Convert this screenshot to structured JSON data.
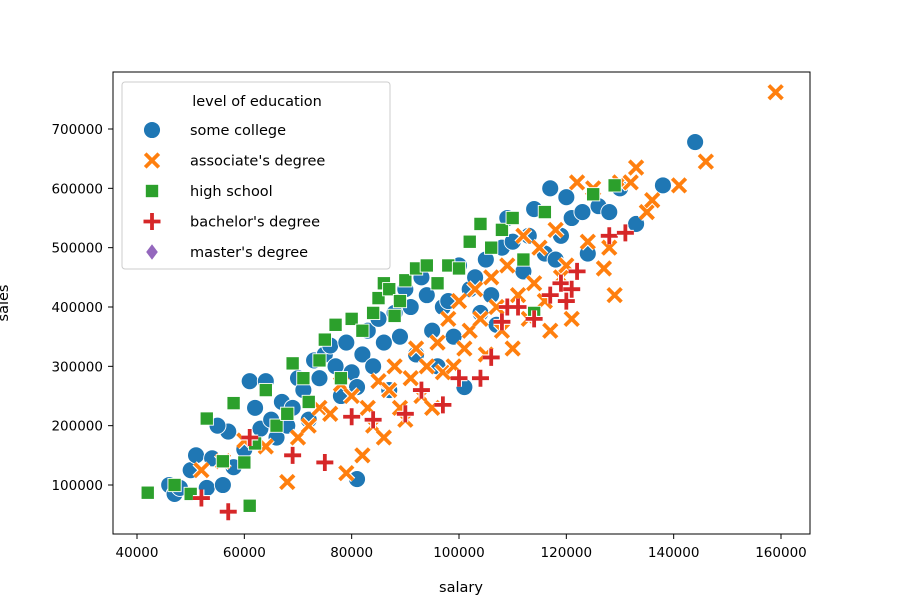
{
  "chart_data": {
    "type": "scatter",
    "xlabel": "salary",
    "ylabel": "sales",
    "xlim": [
      40000,
      160000
    ],
    "ylim": [
      0,
      800000
    ],
    "xticks": [
      "40000",
      "60000",
      "80000",
      "100000",
      "120000",
      "140000",
      "160000"
    ],
    "yticks": [
      "100000",
      "200000",
      "300000",
      "400000",
      "500000",
      "600000",
      "700000"
    ],
    "grid": false,
    "legend": {
      "title": "level of education",
      "position": "top-left",
      "entries": [
        "some college",
        "associate's degree",
        "high school",
        "bachelor's degree",
        "master's degree"
      ]
    },
    "series": [
      {
        "name": "some college",
        "color": "#1f77b4",
        "marker": "circle",
        "points": [
          [
            46000,
            100000
          ],
          [
            47000,
            85000
          ],
          [
            48000,
            95000
          ],
          [
            50000,
            125000
          ],
          [
            51000,
            150000
          ],
          [
            53000,
            95000
          ],
          [
            54000,
            145000
          ],
          [
            56000,
            100000
          ],
          [
            57000,
            190000
          ],
          [
            55000,
            200000
          ],
          [
            58000,
            130000
          ],
          [
            60000,
            160000
          ],
          [
            61000,
            275000
          ],
          [
            62000,
            230000
          ],
          [
            63000,
            195000
          ],
          [
            64000,
            275000
          ],
          [
            65000,
            210000
          ],
          [
            66000,
            180000
          ],
          [
            67000,
            240000
          ],
          [
            68000,
            200000
          ],
          [
            69000,
            230000
          ],
          [
            70000,
            280000
          ],
          [
            71000,
            260000
          ],
          [
            72000,
            210000
          ],
          [
            73000,
            310000
          ],
          [
            74000,
            280000
          ],
          [
            75000,
            320000
          ],
          [
            76000,
            335000
          ],
          [
            77000,
            300000
          ],
          [
            78000,
            250000
          ],
          [
            79000,
            340000
          ],
          [
            80000,
            290000
          ],
          [
            81000,
            110000
          ],
          [
            81000,
            265000
          ],
          [
            82000,
            320000
          ],
          [
            83000,
            360000
          ],
          [
            84000,
            300000
          ],
          [
            85000,
            380000
          ],
          [
            86000,
            340000
          ],
          [
            87000,
            260000
          ],
          [
            88000,
            390000
          ],
          [
            89000,
            350000
          ],
          [
            90000,
            430000
          ],
          [
            91000,
            400000
          ],
          [
            92000,
            320000
          ],
          [
            93000,
            450000
          ],
          [
            94000,
            420000
          ],
          [
            95000,
            360000
          ],
          [
            96000,
            300000
          ],
          [
            97000,
            400000
          ],
          [
            98000,
            410000
          ],
          [
            99000,
            350000
          ],
          [
            100000,
            470000
          ],
          [
            101000,
            265000
          ],
          [
            102000,
            430000
          ],
          [
            103000,
            450000
          ],
          [
            104000,
            390000
          ],
          [
            105000,
            480000
          ],
          [
            106000,
            420000
          ],
          [
            107000,
            370000
          ],
          [
            108000,
            500000
          ],
          [
            109000,
            550000
          ],
          [
            110000,
            510000
          ],
          [
            112000,
            460000
          ],
          [
            113000,
            520000
          ],
          [
            114000,
            565000
          ],
          [
            116000,
            490000
          ],
          [
            117000,
            600000
          ],
          [
            118000,
            480000
          ],
          [
            119000,
            520000
          ],
          [
            120000,
            585000
          ],
          [
            121000,
            550000
          ],
          [
            123000,
            560000
          ],
          [
            124000,
            490000
          ],
          [
            126000,
            570000
          ],
          [
            128000,
            560000
          ],
          [
            130000,
            600000
          ],
          [
            133000,
            540000
          ],
          [
            138000,
            605000
          ],
          [
            144000,
            678000
          ]
        ]
      },
      {
        "name": "associate's degree",
        "color": "#ff7f0e",
        "marker": "x",
        "points": [
          [
            52000,
            125000
          ],
          [
            56000,
            140000
          ],
          [
            60000,
            175000
          ],
          [
            64000,
            165000
          ],
          [
            68000,
            105000
          ],
          [
            70000,
            180000
          ],
          [
            72000,
            200000
          ],
          [
            74000,
            230000
          ],
          [
            76000,
            220000
          ],
          [
            78000,
            270000
          ],
          [
            79000,
            120000
          ],
          [
            80000,
            250000
          ],
          [
            82000,
            150000
          ],
          [
            83000,
            230000
          ],
          [
            84000,
            200000
          ],
          [
            85000,
            275000
          ],
          [
            86000,
            180000
          ],
          [
            87000,
            260000
          ],
          [
            88000,
            300000
          ],
          [
            89000,
            230000
          ],
          [
            90000,
            210000
          ],
          [
            91000,
            280000
          ],
          [
            92000,
            330000
          ],
          [
            93000,
            250000
          ],
          [
            94000,
            300000
          ],
          [
            95000,
            230000
          ],
          [
            96000,
            340000
          ],
          [
            97000,
            290000
          ],
          [
            98000,
            380000
          ],
          [
            99000,
            300000
          ],
          [
            100000,
            410000
          ],
          [
            101000,
            330000
          ],
          [
            102000,
            360000
          ],
          [
            103000,
            430000
          ],
          [
            104000,
            380000
          ],
          [
            105000,
            320000
          ],
          [
            106000,
            450000
          ],
          [
            107000,
            400000
          ],
          [
            108000,
            360000
          ],
          [
            109000,
            470000
          ],
          [
            110000,
            330000
          ],
          [
            111000,
            420000
          ],
          [
            112000,
            520000
          ],
          [
            113000,
            380000
          ],
          [
            114000,
            440000
          ],
          [
            115000,
            500000
          ],
          [
            116000,
            410000
          ],
          [
            117000,
            360000
          ],
          [
            118000,
            530000
          ],
          [
            119000,
            450000
          ],
          [
            120000,
            470000
          ],
          [
            121000,
            380000
          ],
          [
            122000,
            610000
          ],
          [
            124000,
            510000
          ],
          [
            125000,
            600000
          ],
          [
            127000,
            465000
          ],
          [
            128000,
            500000
          ],
          [
            129000,
            420000
          ],
          [
            130000,
            610000
          ],
          [
            132000,
            610000
          ],
          [
            133000,
            635000
          ],
          [
            135000,
            560000
          ],
          [
            136000,
            580000
          ],
          [
            141000,
            605000
          ],
          [
            146000,
            645000
          ],
          [
            159000,
            762000
          ]
        ]
      },
      {
        "name": "high school",
        "color": "#2ca02c",
        "marker": "square",
        "points": [
          [
            42000,
            87000
          ],
          [
            47000,
            100000
          ],
          [
            50000,
            85000
          ],
          [
            53000,
            212000
          ],
          [
            56000,
            140000
          ],
          [
            58000,
            238000
          ],
          [
            60000,
            138000
          ],
          [
            61000,
            65000
          ],
          [
            62000,
            170000
          ],
          [
            64000,
            260000
          ],
          [
            66000,
            200000
          ],
          [
            68000,
            220000
          ],
          [
            69000,
            305000
          ],
          [
            71000,
            280000
          ],
          [
            72000,
            240000
          ],
          [
            74000,
            310000
          ],
          [
            75000,
            345000
          ],
          [
            77000,
            370000
          ],
          [
            78000,
            280000
          ],
          [
            80000,
            380000
          ],
          [
            82000,
            360000
          ],
          [
            84000,
            390000
          ],
          [
            85000,
            415000
          ],
          [
            86000,
            440000
          ],
          [
            87000,
            430000
          ],
          [
            88000,
            385000
          ],
          [
            89000,
            410000
          ],
          [
            90000,
            445000
          ],
          [
            92000,
            465000
          ],
          [
            94000,
            470000
          ],
          [
            96000,
            440000
          ],
          [
            98000,
            470000
          ],
          [
            100000,
            465000
          ],
          [
            102000,
            510000
          ],
          [
            104000,
            540000
          ],
          [
            106000,
            500000
          ],
          [
            108000,
            530000
          ],
          [
            110000,
            550000
          ],
          [
            112000,
            480000
          ],
          [
            114000,
            390000
          ],
          [
            116000,
            560000
          ],
          [
            125000,
            590000
          ],
          [
            129000,
            605000
          ]
        ]
      },
      {
        "name": "bachelor's degree",
        "color": "#d62728",
        "marker": "plus",
        "points": [
          [
            52000,
            78000
          ],
          [
            57000,
            55000
          ],
          [
            61000,
            180000
          ],
          [
            69000,
            150000
          ],
          [
            75000,
            138000
          ],
          [
            80000,
            215000
          ],
          [
            84000,
            210000
          ],
          [
            90000,
            220000
          ],
          [
            93000,
            260000
          ],
          [
            97000,
            235000
          ],
          [
            100000,
            280000
          ],
          [
            104000,
            280000
          ],
          [
            106000,
            315000
          ],
          [
            108000,
            375000
          ],
          [
            109000,
            400000
          ],
          [
            111000,
            400000
          ],
          [
            114000,
            380000
          ],
          [
            117000,
            420000
          ],
          [
            119000,
            440000
          ],
          [
            120000,
            410000
          ],
          [
            121000,
            430000
          ],
          [
            122000,
            460000
          ],
          [
            128000,
            520000
          ],
          [
            131000,
            525000
          ]
        ]
      },
      {
        "name": "master's degree",
        "color": "#9467bd",
        "marker": "diamond",
        "points": []
      }
    ]
  }
}
